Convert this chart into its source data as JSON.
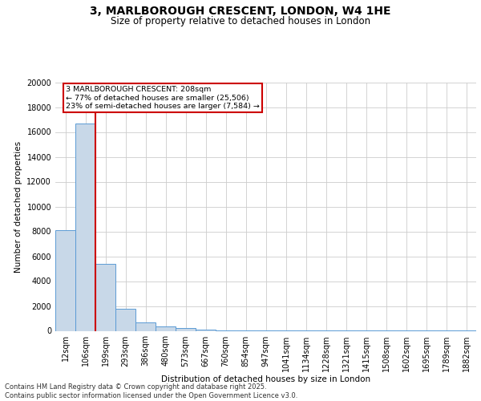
{
  "title1": "3, MARLBOROUGH CRESCENT, LONDON, W4 1HE",
  "title2": "Size of property relative to detached houses in London",
  "xlabel": "Distribution of detached houses by size in London",
  "ylabel": "Number of detached properties",
  "categories": [
    "12sqm",
    "106sqm",
    "199sqm",
    "293sqm",
    "386sqm",
    "480sqm",
    "573sqm",
    "667sqm",
    "760sqm",
    "854sqm",
    "947sqm",
    "1041sqm",
    "1134sqm",
    "1228sqm",
    "1321sqm",
    "1415sqm",
    "1508sqm",
    "1602sqm",
    "1695sqm",
    "1789sqm",
    "1882sqm"
  ],
  "values": [
    8100,
    16700,
    5400,
    1800,
    650,
    350,
    200,
    100,
    60,
    35,
    20,
    12,
    8,
    5,
    3,
    2,
    2,
    1,
    1,
    1,
    1
  ],
  "bar_color": "#c8d8e8",
  "bar_edge_color": "#5b9bd5",
  "red_line_x": 1.5,
  "annotation_text": "3 MARLBOROUGH CRESCENT: 208sqm\n← 77% of detached houses are smaller (25,506)\n23% of semi-detached houses are larger (7,584) →",
  "annotation_box_color": "#cc0000",
  "ylim": [
    0,
    20000
  ],
  "yticks": [
    0,
    2000,
    4000,
    6000,
    8000,
    10000,
    12000,
    14000,
    16000,
    18000,
    20000
  ],
  "footer1": "Contains HM Land Registry data © Crown copyright and database right 2025.",
  "footer2": "Contains public sector information licensed under the Open Government Licence v3.0.",
  "bg_color": "#ffffff",
  "grid_color": "#cccccc",
  "title1_fontsize": 10,
  "title2_fontsize": 8.5,
  "annotation_fontsize": 6.8,
  "tick_fontsize": 7,
  "ylabel_fontsize": 7.5,
  "xlabel_fontsize": 7.5,
  "footer_fontsize": 6
}
